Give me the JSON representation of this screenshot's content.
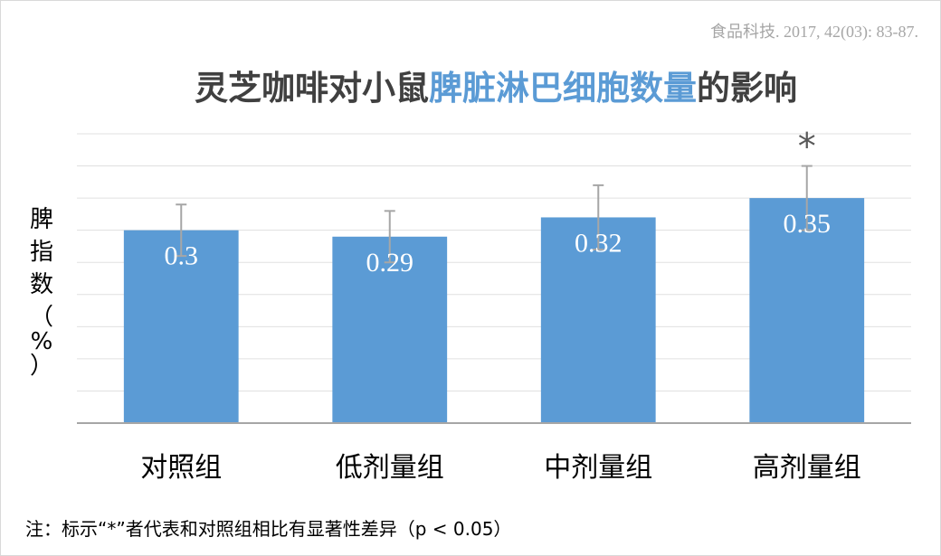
{
  "source_citation": "食品科技. 2017, 42(03): 83-87.",
  "title_segments": [
    {
      "text": "灵芝咖啡对小鼠",
      "highlight": false
    },
    {
      "text": "脾脏淋巴细胞数量",
      "highlight": true
    },
    {
      "text": "的影响",
      "highlight": false
    }
  ],
  "ylabel_chars": [
    "脾",
    "指",
    "数",
    "（",
    "%",
    "）"
  ],
  "footnote": "注：标示“*”者代表和对照组相比有显著性差异（p < 0.05）",
  "colors": {
    "bar": "#5b9bd5",
    "title_text": "#404040",
    "title_highlight": "#5b9bd5",
    "gridline": "#e0e0e0",
    "axis": "#a6a6a6",
    "error_bar": "#a6a6a6"
  },
  "chart_data": {
    "type": "bar",
    "title": "灵芝咖啡对小鼠脾脏淋巴细胞数量的影响",
    "xlabel": "",
    "ylabel": "脾指数（%）",
    "categories": [
      "对照组",
      "低剂量组",
      "中剂量组",
      "高剂量组"
    ],
    "values": [
      0.3,
      0.29,
      0.32,
      0.35
    ],
    "data_labels": [
      "0.3",
      "0.29",
      "0.32",
      "0.35"
    ],
    "error_plus": [
      0.04,
      0.04,
      0.05,
      0.05
    ],
    "error_minus": [
      0.04,
      0.04,
      0.05,
      0.05
    ],
    "annotations": [
      "",
      "",
      "",
      "*"
    ],
    "ylim": [
      0,
      0.45
    ],
    "y_grid_step": 0.05,
    "grid": true,
    "legend": false,
    "y_tick_labels_shown": false
  }
}
